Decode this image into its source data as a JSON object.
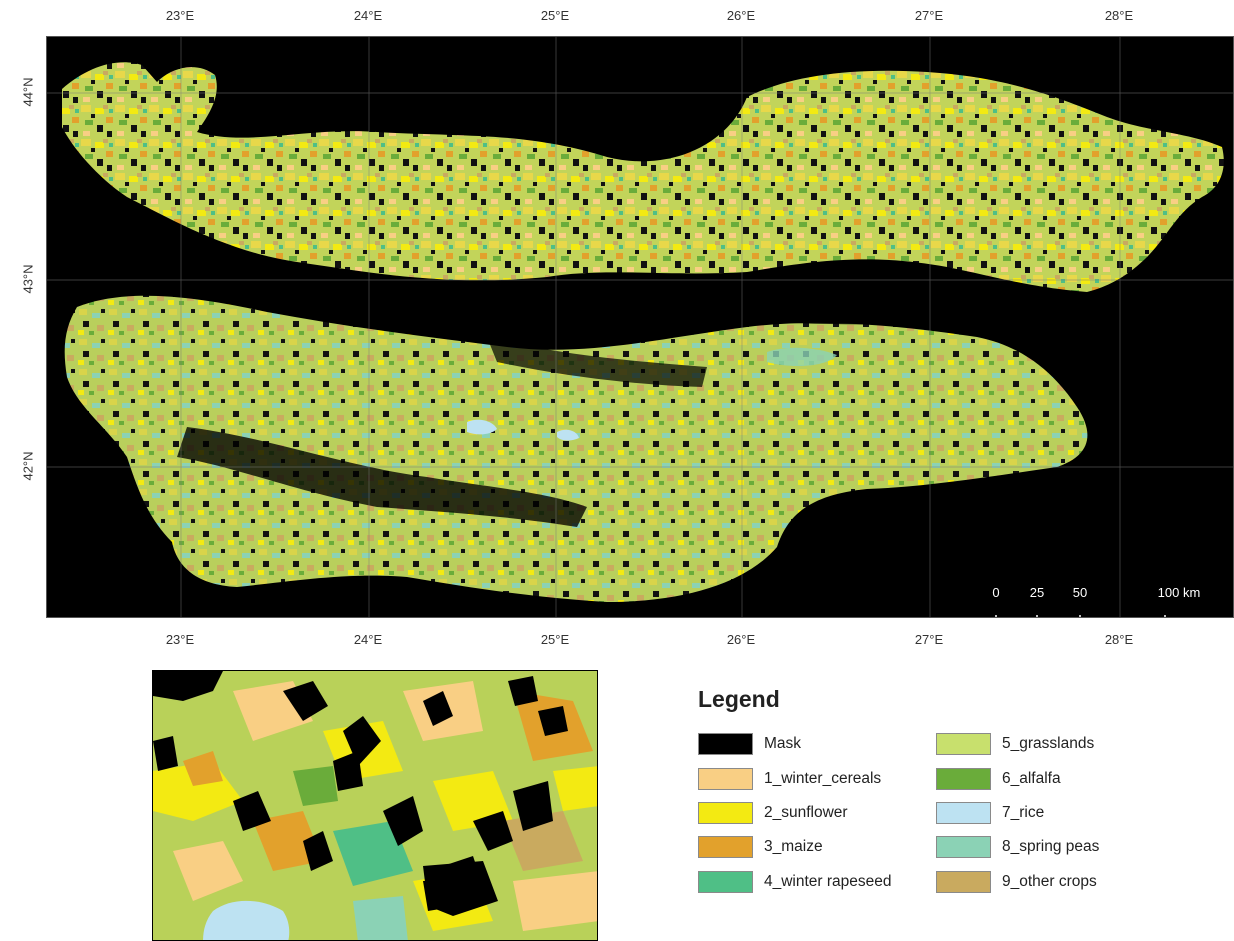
{
  "map": {
    "top_ticks": [
      "23°E",
      "24°E",
      "25°E",
      "26°E",
      "27°E",
      "28°E"
    ],
    "bottom_ticks": [
      "23°E",
      "24°E",
      "25°E",
      "26°E",
      "27°E",
      "28°E"
    ],
    "left_ticks": [
      "44°N",
      "43°N",
      "42°N"
    ],
    "scale_bar": {
      "labels": [
        "0",
        "25",
        "50",
        "100 km"
      ],
      "values": [
        0,
        25,
        50,
        100
      ],
      "unit": "km"
    },
    "background_color": "#000000"
  },
  "legend": {
    "title": "Legend",
    "items": [
      {
        "label": "Mask",
        "color": "#000000"
      },
      {
        "label": "1_winter_cereals",
        "color": "#f9cf84"
      },
      {
        "label": "2_sunflower",
        "color": "#f3ea12"
      },
      {
        "label": "3_maize",
        "color": "#e2a12c"
      },
      {
        "label": "4_winter rapeseed",
        "color": "#4fbf86"
      },
      {
        "label": "5_grasslands",
        "color": "#c8e06d"
      },
      {
        "label": "6_alfalfa",
        "color": "#6aac3a"
      },
      {
        "label": "7_rice",
        "color": "#bde2f2"
      },
      {
        "label": "8_spring peas",
        "color": "#8bd2b5"
      },
      {
        "label": "9_other crops",
        "color": "#c9aa5f"
      }
    ]
  }
}
